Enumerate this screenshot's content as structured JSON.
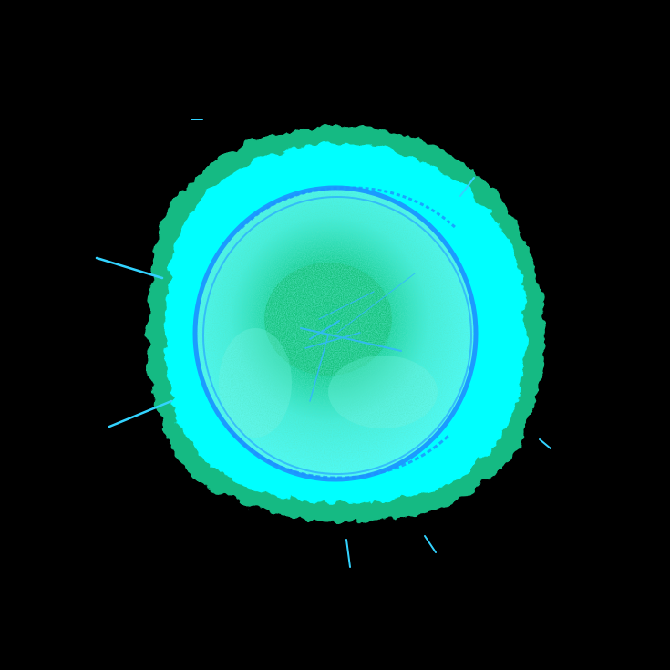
{
  "scene": {
    "subject": "glowing-orb",
    "colors": {
      "background": "#000000",
      "outer_halo": "#18c48a",
      "aura": "#00ffff",
      "ring": "#1e90ff",
      "core": "#12c27a",
      "inner_mist": "#7ff5e6",
      "sparks": "#33b7ff"
    }
  }
}
